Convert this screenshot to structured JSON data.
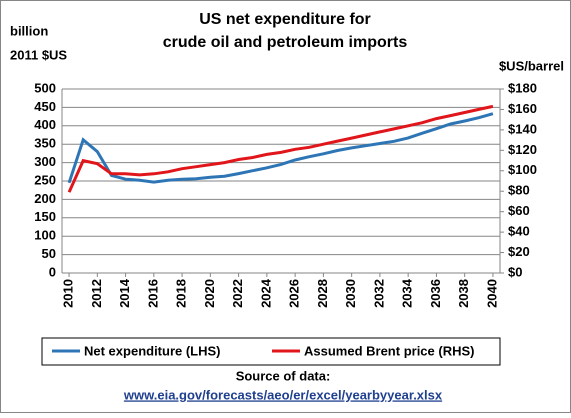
{
  "chart_data": {
    "type": "line",
    "title_lines": [
      "US net expenditure for",
      "crude oil and petroleum imports"
    ],
    "y_label_lines": [
      "billion",
      "2011 $US"
    ],
    "y2_label": "$US/barrel",
    "x": [
      2010,
      2011,
      2012,
      2013,
      2014,
      2015,
      2016,
      2017,
      2018,
      2019,
      2020,
      2021,
      2022,
      2023,
      2024,
      2025,
      2026,
      2027,
      2028,
      2029,
      2030,
      2031,
      2032,
      2033,
      2034,
      2035,
      2036,
      2037,
      2038,
      2039,
      2040
    ],
    "xlim": [
      2009.5,
      2040.5
    ],
    "xticks": [
      2010,
      2012,
      2014,
      2016,
      2018,
      2020,
      2022,
      2024,
      2026,
      2028,
      2030,
      2032,
      2034,
      2036,
      2038,
      2040
    ],
    "ylim": [
      0,
      500
    ],
    "yticks": [
      0,
      50,
      100,
      150,
      200,
      250,
      300,
      350,
      400,
      450,
      500
    ],
    "y2lim": [
      0,
      180
    ],
    "y2ticks": [
      {
        "value": 0,
        "label": "$0"
      },
      {
        "value": 20,
        "label": "$20"
      },
      {
        "value": 40,
        "label": "$40"
      },
      {
        "value": 60,
        "label": "$60"
      },
      {
        "value": 80,
        "label": "$80"
      },
      {
        "value": 100,
        "label": "$100"
      },
      {
        "value": 120,
        "label": "$120"
      },
      {
        "value": 140,
        "label": "$140"
      },
      {
        "value": 160,
        "label": "$160"
      },
      {
        "value": 180,
        "label": "$180"
      }
    ],
    "grid": true,
    "legend": "bottom",
    "series": [
      {
        "name": "Net expenditure (LHS)",
        "color": "#2e75b6",
        "values": [
          245,
          362,
          330,
          265,
          255,
          252,
          247,
          252,
          255,
          256,
          260,
          263,
          270,
          278,
          286,
          295,
          307,
          316,
          324,
          333,
          340,
          346,
          352,
          358,
          367,
          380,
          392,
          405,
          413,
          422,
          433
        ]
      },
      {
        "name": "Assumed Brent price (RHS)",
        "color": "#e0161b",
        "axis": "y2",
        "values": [
          79,
          110,
          107,
          97,
          97,
          96,
          97,
          99,
          102,
          104,
          106,
          108,
          111,
          113,
          116,
          118,
          121,
          123,
          126,
          129,
          132,
          135,
          138,
          141,
          144,
          147,
          151,
          154,
          157,
          160,
          163
        ]
      }
    ],
    "source_label": "Source of data:",
    "source_link": "www.eia.gov/forecasts/aeo/er/excel/yearbyyear.xlsx"
  }
}
